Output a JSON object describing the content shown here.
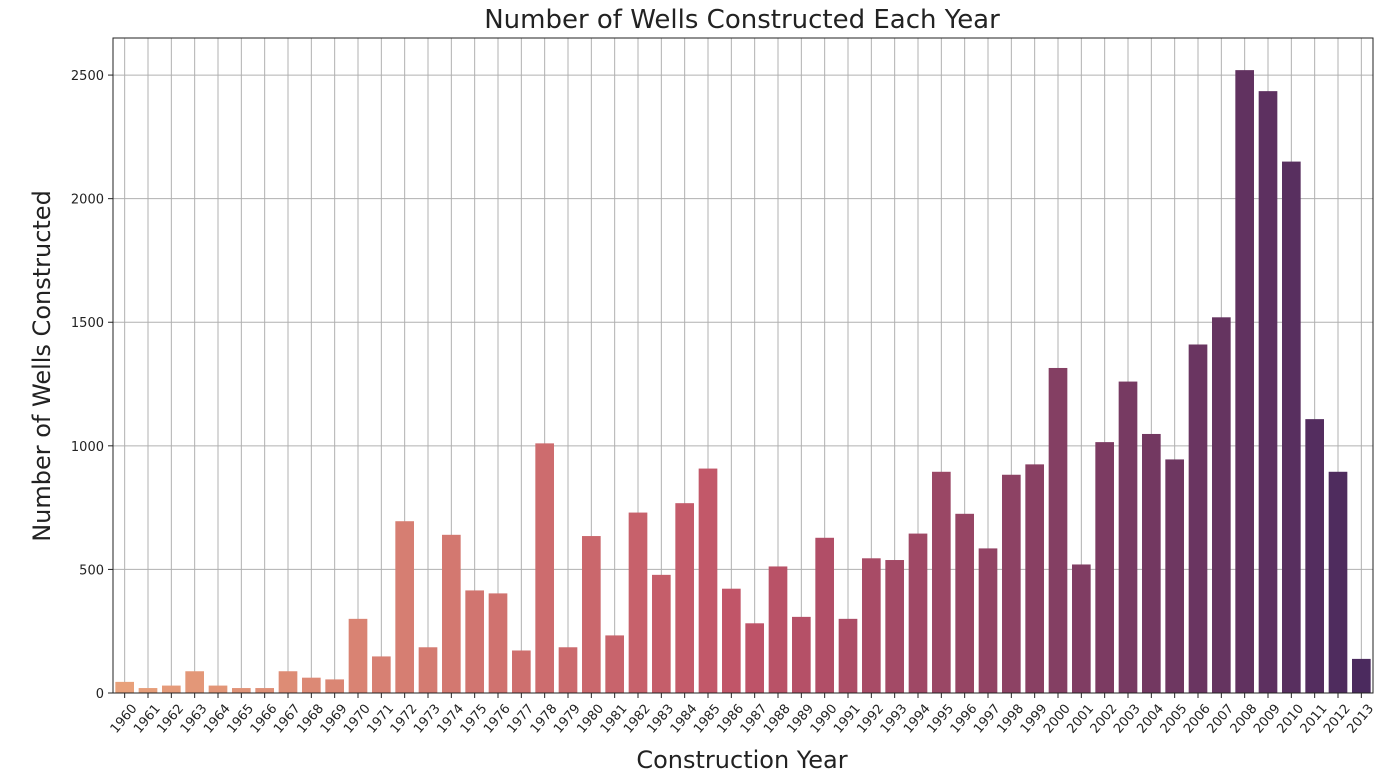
{
  "chart_data": {
    "type": "bar",
    "title": "Number of Wells Constructed Each Year",
    "xlabel": "Construction Year",
    "ylabel": "Number of Wells Constructed",
    "ylim": [
      0,
      2650
    ],
    "yticks": [
      0,
      500,
      1000,
      1500,
      2000,
      2500
    ],
    "grid": true,
    "color_start": "#e8a07a",
    "color_mid": "#c05468",
    "color_end": "#4b2a5e",
    "categories": [
      "1960",
      "1961",
      "1962",
      "1963",
      "1964",
      "1965",
      "1966",
      "1967",
      "1968",
      "1969",
      "1970",
      "1971",
      "1972",
      "1973",
      "1974",
      "1975",
      "1976",
      "1977",
      "1978",
      "1979",
      "1980",
      "1981",
      "1982",
      "1983",
      "1984",
      "1985",
      "1986",
      "1987",
      "1988",
      "1989",
      "1990",
      "1991",
      "1992",
      "1993",
      "1994",
      "1995",
      "1996",
      "1997",
      "1998",
      "1999",
      "2000",
      "2001",
      "2002",
      "2003",
      "2004",
      "2005",
      "2006",
      "2007",
      "2008",
      "2009",
      "2010",
      "2011",
      "2012",
      "2013"
    ],
    "values": [
      45,
      20,
      30,
      88,
      30,
      20,
      20,
      88,
      62,
      55,
      300,
      148,
      695,
      185,
      640,
      415,
      403,
      172,
      1010,
      185,
      635,
      233,
      730,
      478,
      768,
      908,
      422,
      282,
      512,
      308,
      628,
      300,
      545,
      538,
      645,
      895,
      725,
      585,
      883,
      925,
      1315,
      520,
      1015,
      1260,
      1048,
      945,
      1410,
      1520,
      2520,
      2435,
      2150,
      1108,
      895,
      138
    ]
  }
}
